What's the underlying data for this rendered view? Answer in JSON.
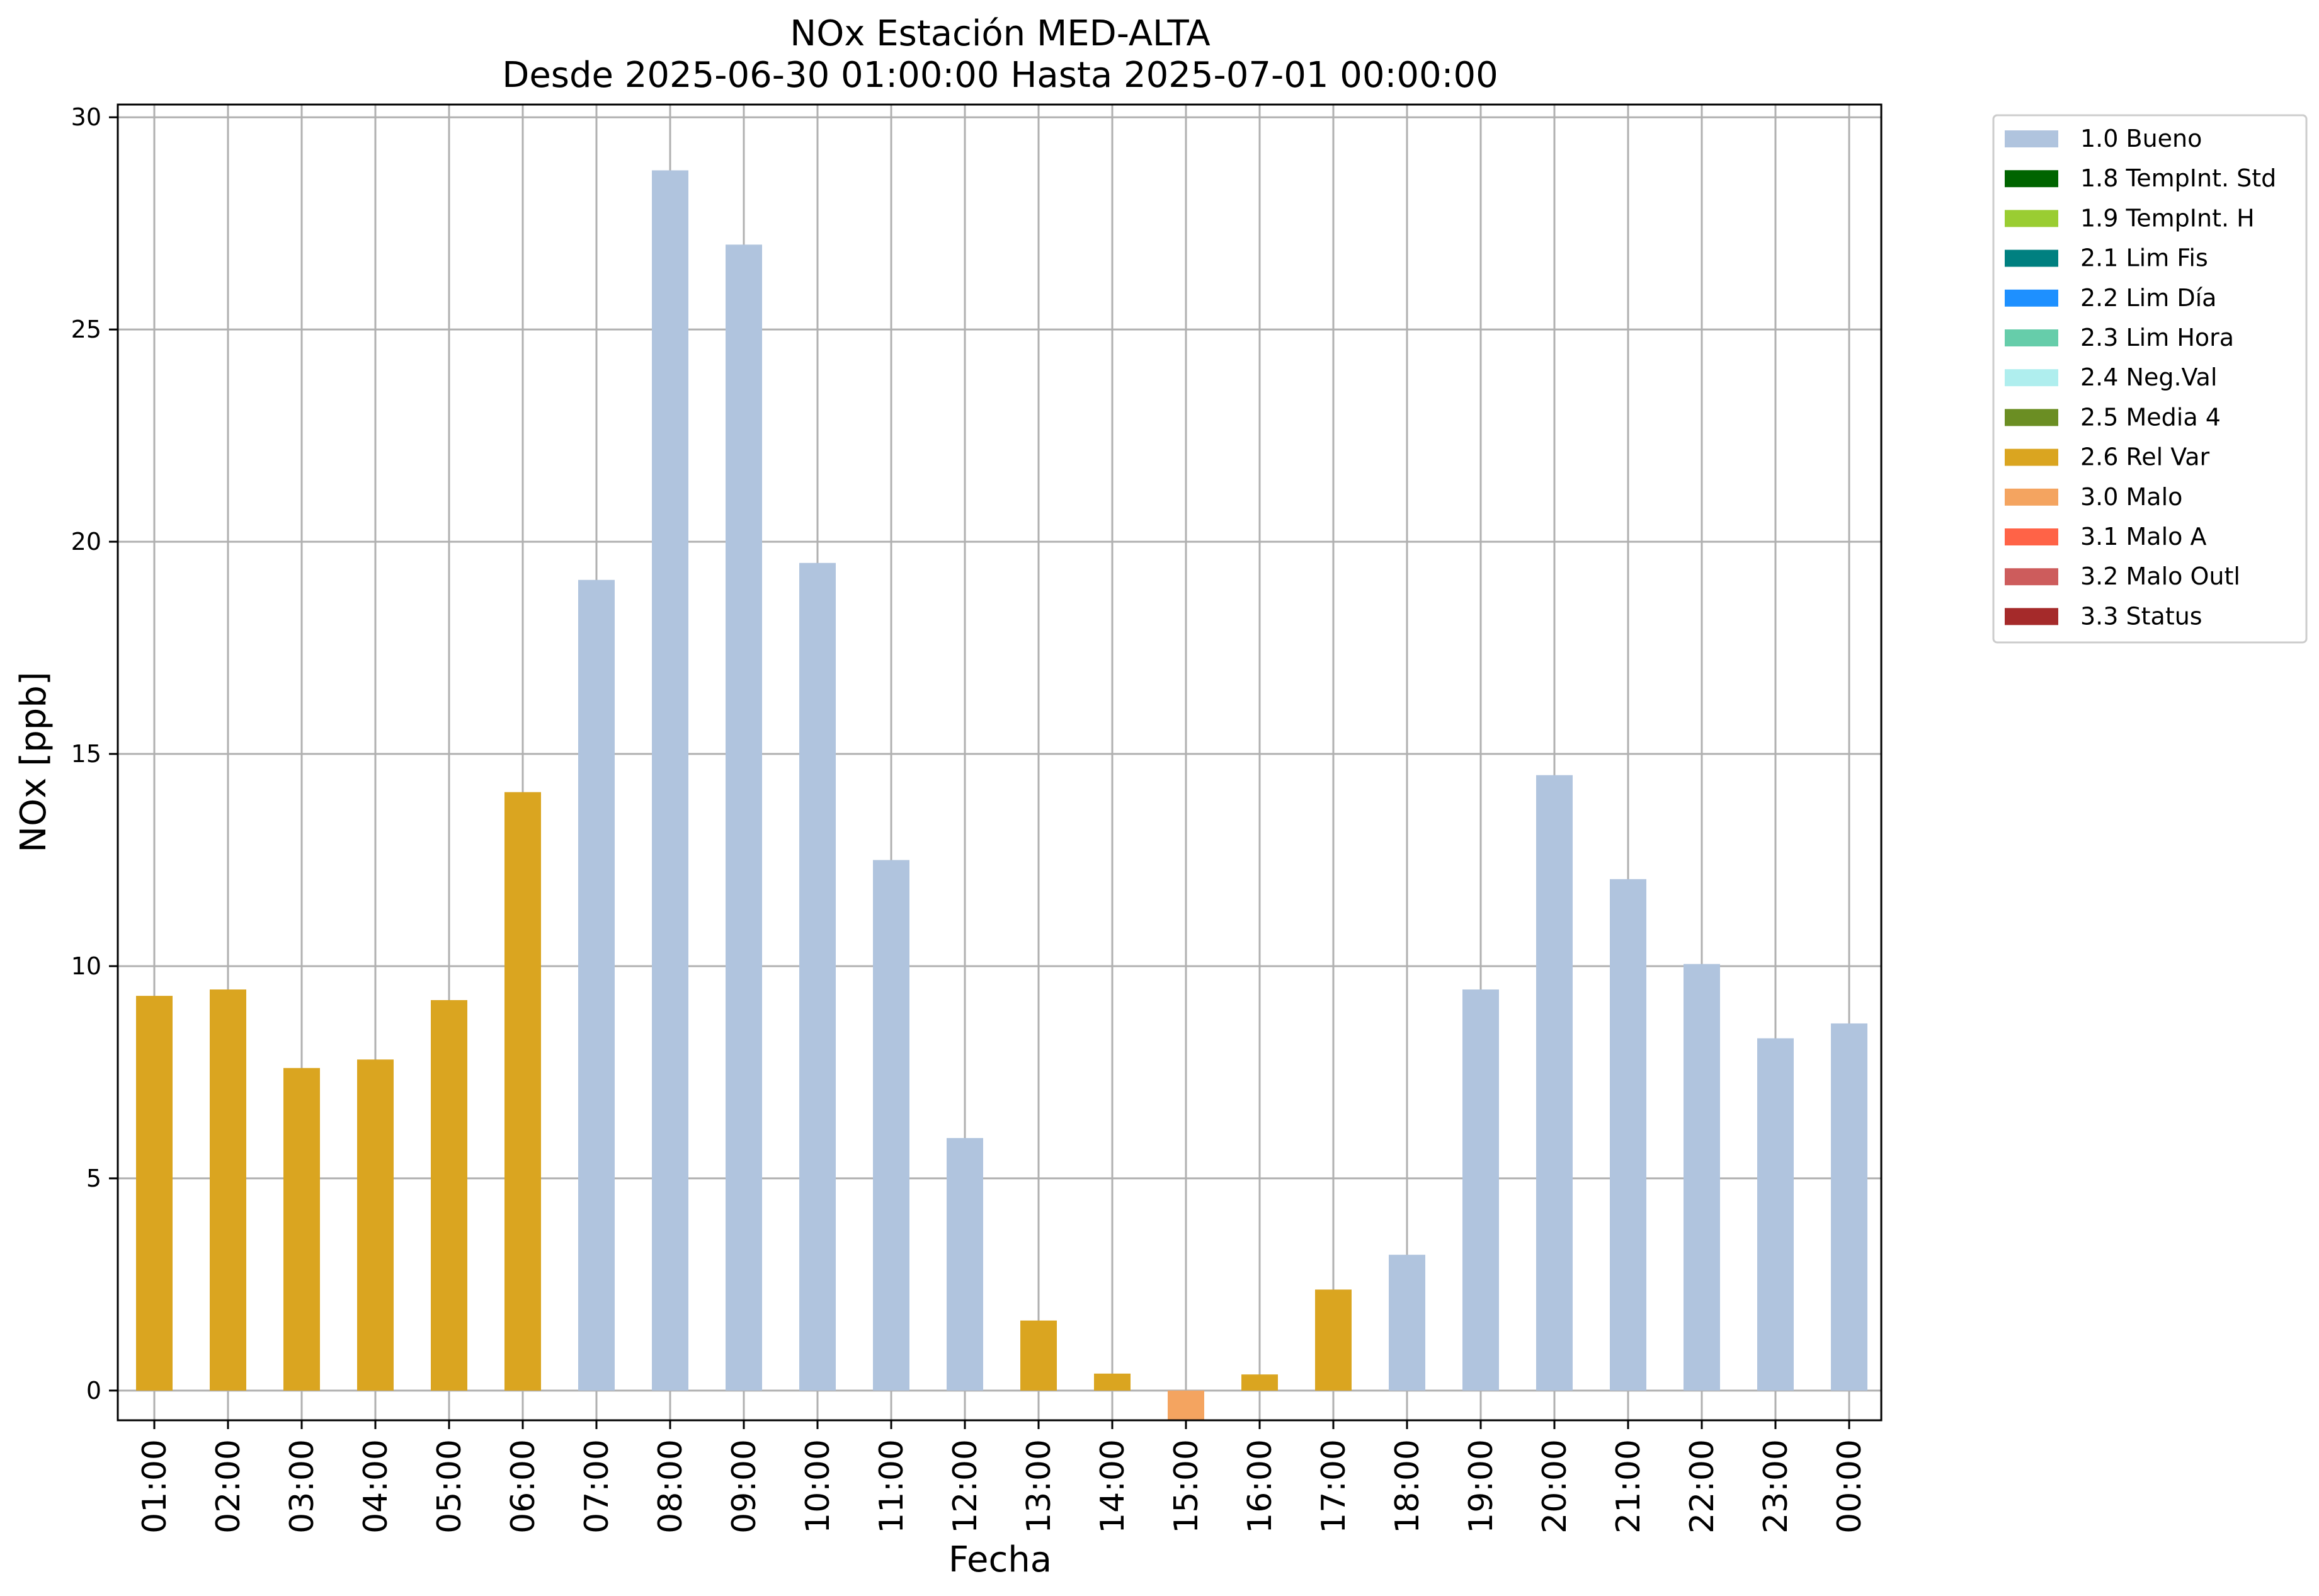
{
  "chart_data": {
    "type": "bar",
    "title": "NOx Estación MED-ALTA",
    "subtitle": "Desde 2025-06-30 01:00:00 Hasta 2025-07-01 00:00:00",
    "xlabel": "Fecha",
    "ylabel": "NOx [ppb]",
    "ylim": [
      -0.7,
      30.3
    ],
    "yticks": [
      0,
      5,
      10,
      15,
      20,
      25,
      30
    ],
    "grid": true,
    "legend_position": "outside-top-right",
    "categories": [
      "01:00",
      "02:00",
      "03:00",
      "04:00",
      "05:00",
      "06:00",
      "07:00",
      "08:00",
      "09:00",
      "10:00",
      "11:00",
      "12:00",
      "13:00",
      "14:00",
      "15:00",
      "16:00",
      "17:00",
      "18:00",
      "19:00",
      "20:00",
      "21:00",
      "22:00",
      "23:00",
      "00:00"
    ],
    "values": [
      9.3,
      9.45,
      7.6,
      7.8,
      9.2,
      14.1,
      19.1,
      28.75,
      27.0,
      19.5,
      12.5,
      5.95,
      1.65,
      0.4,
      -0.7,
      0.38,
      2.38,
      3.2,
      9.45,
      14.5,
      12.05,
      10.05,
      8.3,
      8.65
    ],
    "flags": [
      "2.6 Rel Var",
      "2.6 Rel Var",
      "2.6 Rel Var",
      "2.6 Rel Var",
      "2.6 Rel Var",
      "2.6 Rel Var",
      "1.0 Bueno",
      "1.0 Bueno",
      "1.0 Bueno",
      "1.0 Bueno",
      "1.0 Bueno",
      "1.0 Bueno",
      "2.6 Rel Var",
      "2.6 Rel Var",
      "3.0 Malo",
      "2.6 Rel Var",
      "2.6 Rel Var",
      "1.0 Bueno",
      "1.0 Bueno",
      "1.0 Bueno",
      "1.0 Bueno",
      "1.0 Bueno",
      "1.0 Bueno",
      "1.0 Bueno"
    ],
    "legend": [
      {
        "label": "1.0 Bueno",
        "color": "#b0c4de"
      },
      {
        "label": "1.8 TempInt. Std",
        "color": "#006400"
      },
      {
        "label": "1.9 TempInt. H",
        "color": "#9acd32"
      },
      {
        "label": "2.1 Lim Fis",
        "color": "#008080"
      },
      {
        "label": "2.2 Lim Día",
        "color": "#1e90ff"
      },
      {
        "label": "2.3 Lim Hora",
        "color": "#66cdaa"
      },
      {
        "label": "2.4 Neg.Val",
        "color": "#afeeee"
      },
      {
        "label": "2.5 Media 4",
        "color": "#6b8e23"
      },
      {
        "label": "2.6 Rel Var",
        "color": "#daa520"
      },
      {
        "label": "3.0 Malo",
        "color": "#f4a460"
      },
      {
        "label": "3.1 Malo A",
        "color": "#ff6347"
      },
      {
        "label": "3.2 Malo Outl",
        "color": "#cd5c5c"
      },
      {
        "label": "3.3 Status",
        "color": "#a52a2a"
      }
    ]
  }
}
